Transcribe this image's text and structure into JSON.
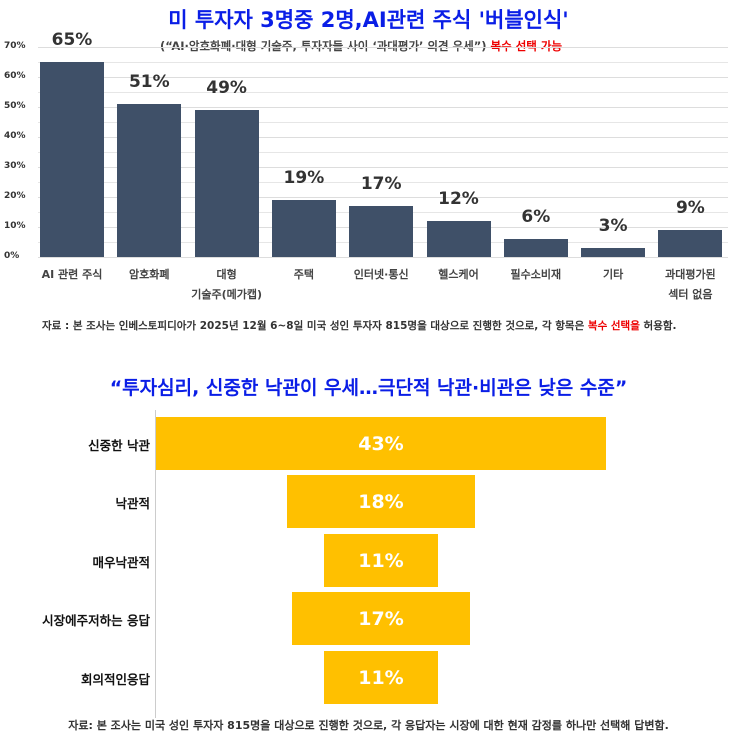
{
  "chart_data": [
    {
      "type": "bar",
      "title": "미 투자자 3명중 2명,AI관련 주식 '버블인식'",
      "subtitle": "(“AI·암호화폐·대형 기술주, 투자자들 사이 ‘과대평가’ 의견 우세”)",
      "subtitle_note": "복수 선택 가능",
      "categories": [
        "AI 관련 주식",
        "암호화폐",
        "대형\n기술주(메가캡)",
        "주택",
        "인터넷·통신",
        "헬스케어",
        "필수소비재",
        "기타",
        "과대평가된\n섹터 없음"
      ],
      "values": [
        65,
        51,
        49,
        19,
        17,
        12,
        6,
        3,
        9
      ],
      "value_labels": [
        "65%",
        "51%",
        "49%",
        "19%",
        "17%",
        "12%",
        "6%",
        "3%",
        "9%"
      ],
      "yticks": [
        "0%",
        "10%",
        "20%",
        "30%",
        "40%",
        "50%",
        "60%",
        "70%"
      ],
      "ylim": [
        0,
        70
      ],
      "grid": true,
      "color": "#3f5068",
      "source": "자료 : 본 조사는 인베스토피디아가 2025년 12월 6~8일 미국 성인 투자자 815명을 대상으로 진행한 것으로, 각 항목은 ",
      "source_red": "복수 선택을",
      "source_end": " 허용함."
    },
    {
      "type": "bar",
      "orientation": "horizontal-funnel",
      "title": "“투자심리, 신중한 낙관이 우세…극단적 낙관·비관은 낮은 수준”",
      "categories": [
        "신중한 낙관",
        "낙관적",
        "매우낙관적",
        "시장에주저하는 응답",
        "회의적인응답"
      ],
      "values": [
        43,
        18,
        11,
        17,
        11
      ],
      "value_labels": [
        "43%",
        "18%",
        "11%",
        "17%",
        "11%"
      ],
      "color": "#ffc000",
      "source": "자료: 본 조사는 미국 성인 투자자 815명을 대상으로 진행한 것으로, 각 응답자는 시장에 대한 현재 감정를 하나만 선택해 답변함."
    }
  ]
}
